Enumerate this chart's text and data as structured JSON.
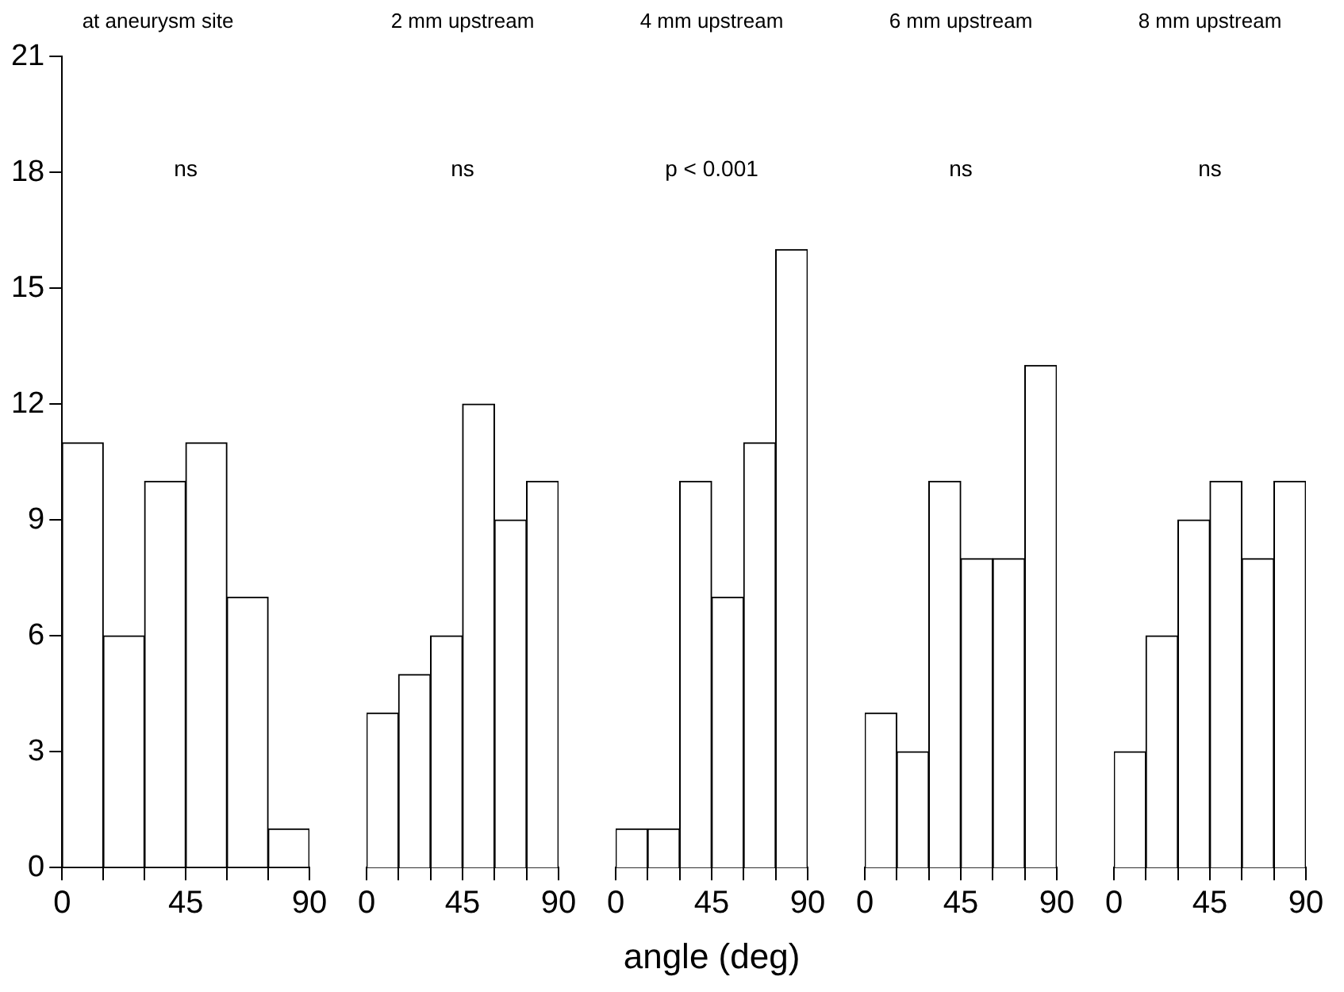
{
  "chart_data": [
    {
      "type": "histogram",
      "title": "at aneurysm site",
      "bins": [
        0,
        15,
        30,
        45,
        60,
        75,
        90
      ],
      "values": [
        11,
        6,
        10,
        11,
        7,
        1
      ],
      "color": "#ffffff",
      "xlim": [
        0,
        90
      ],
      "xticks": [
        0,
        {
          "value": 15,
          "label": null
        },
        {
          "value": 30,
          "label": null
        },
        45,
        {
          "value": 60,
          "label": null
        },
        {
          "value": 75,
          "label": null
        },
        90
      ],
      "ylim": [
        0,
        21
      ],
      "yticks": [
        0,
        3,
        6,
        9,
        12,
        15,
        18,
        21
      ],
      "annotations": [
        "ns"
      ]
    },
    {
      "type": "histogram",
      "title": "2 mm upstream",
      "bins": [
        0,
        15,
        30,
        45,
        60,
        75,
        90
      ],
      "values": [
        4,
        5,
        6,
        12,
        9,
        10
      ],
      "color": "#ffffff",
      "xlim": [
        0,
        90
      ],
      "xticks": [
        0,
        {
          "value": 15,
          "label": null
        },
        {
          "value": 30,
          "label": null
        },
        45,
        {
          "value": 60,
          "label": null
        },
        {
          "value": 75,
          "label": null
        },
        90
      ],
      "ylim": [
        0,
        21
      ],
      "tick_labels": "x",
      "annotations": [
        "ns"
      ]
    },
    {
      "type": "histogram",
      "title": "4 mm upstream",
      "xlabel": "angle (deg)",
      "bins": [
        0,
        15,
        30,
        45,
        60,
        75,
        90
      ],
      "values": [
        1,
        1,
        10,
        7,
        11,
        16
      ],
      "color": "#ffffff",
      "xlim": [
        0,
        90
      ],
      "xticks": [
        0,
        {
          "value": 15,
          "label": null
        },
        {
          "value": 30,
          "label": null
        },
        45,
        {
          "value": 60,
          "label": null
        },
        {
          "value": 75,
          "label": null
        },
        90
      ],
      "ylim": [
        0,
        21
      ],
      "tick_labels": "x",
      "annotations": [
        "p < 0.001"
      ]
    },
    {
      "type": "histogram",
      "title": "6 mm upstream",
      "bins": [
        0,
        15,
        30,
        45,
        60,
        75,
        90
      ],
      "values": [
        4,
        3,
        10,
        8,
        8,
        13
      ],
      "color": "#ffffff",
      "xlim": [
        0,
        90
      ],
      "xticks": [
        0,
        {
          "value": 15,
          "label": null
        },
        {
          "value": 30,
          "label": null
        },
        45,
        {
          "value": 60,
          "label": null
        },
        {
          "value": 75,
          "label": null
        },
        90
      ],
      "ylim": [
        0,
        21
      ],
      "tick_labels": "x",
      "annotations": [
        "ns"
      ]
    },
    {
      "type": "histogram",
      "title": "8 mm upstream",
      "bins": [
        0,
        15,
        30,
        45,
        60,
        75,
        90
      ],
      "values": [
        3,
        6,
        9,
        10,
        8,
        10
      ],
      "color": "#ffffff",
      "xlim": [
        0,
        90
      ],
      "xticks": [
        0,
        {
          "value": 15,
          "label": null
        },
        {
          "value": 30,
          "label": null
        },
        45,
        {
          "value": 60,
          "label": null
        },
        {
          "value": 75,
          "label": null
        },
        90
      ],
      "ylim": [
        0,
        21
      ],
      "tick_labels": "x",
      "annotations": [
        "ns"
      ]
    }
  ]
}
